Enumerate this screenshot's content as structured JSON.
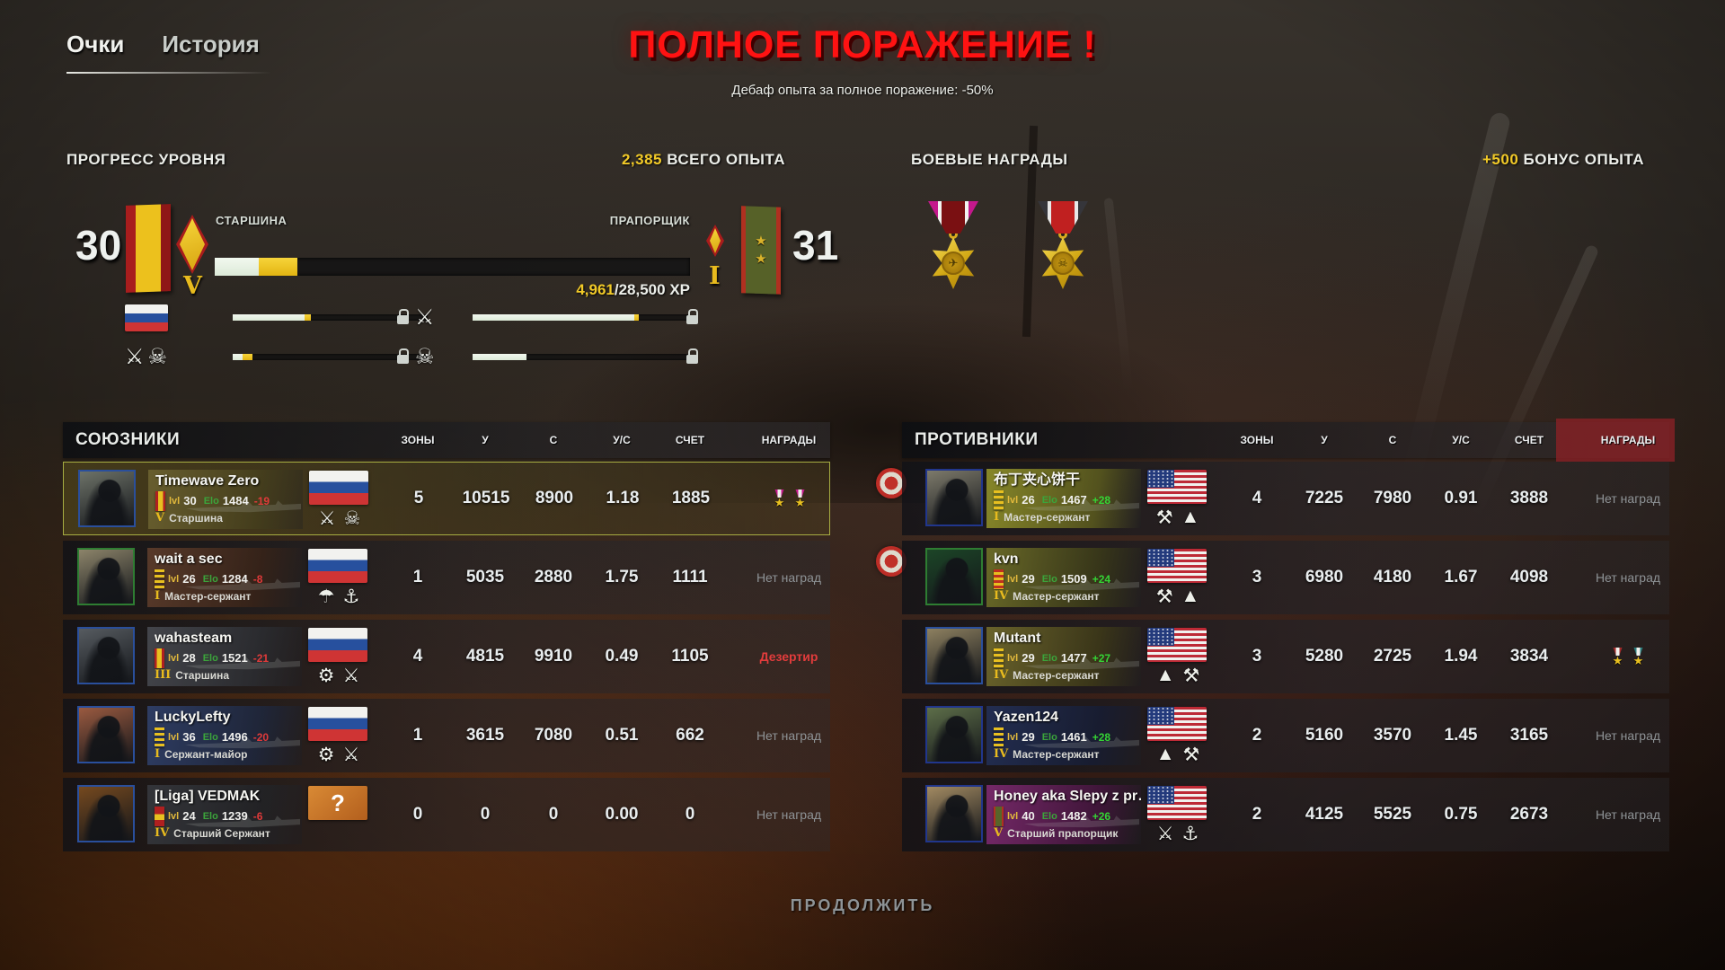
{
  "tabs": [
    {
      "label": "Очки",
      "active": true
    },
    {
      "label": "История",
      "active": false
    }
  ],
  "result": {
    "title": "ПОЛНОЕ ПОРАЖЕНИЕ !",
    "subtitle": "Дебаф опыта за полное поражение: -50%"
  },
  "level_progress": {
    "section_title": "ПРОГРЕСС УРОВНЯ",
    "total_xp_value": "2,385",
    "total_xp_label": "ВСЕГО ОПЫТА",
    "current": {
      "level": "30",
      "rank": "СТАРШИНА",
      "numeral": "V"
    },
    "next": {
      "level": "31",
      "rank": "ПРАПОРЩИК",
      "numeral": "I",
      "stars": "★"
    },
    "xp": {
      "current": "4,961",
      "total": "/28,500 XP"
    },
    "main_bar": {
      "prev_pct": 9.3,
      "gain_pct": 8.1
    },
    "sub_bars": [
      {
        "icons": [
          {
            "name": "russia-flag",
            "type": "flag"
          }
        ],
        "prev_pct": 37,
        "gain_pct": 3
      },
      {
        "icons": [
          {
            "name": "crossed-rifles-emblem",
            "type": "glyph",
            "glyph": "⚔"
          },
          {
            "name": "skull-emblem",
            "type": "glyph",
            "glyph": "☠"
          }
        ],
        "prev_pct": 5,
        "gain_pct": 5
      },
      {
        "icons": [
          {
            "name": "crossed-rifles-emblem",
            "type": "glyph",
            "glyph": "⚔"
          }
        ],
        "prev_pct": 75,
        "gain_pct": 2
      },
      {
        "icons": [
          {
            "name": "skull-emblem",
            "type": "glyph",
            "glyph": "☠"
          }
        ],
        "prev_pct": 25,
        "gain_pct": 0
      }
    ]
  },
  "battle_awards": {
    "section_title": "БОЕВЫЕ НАГРАДЫ",
    "bonus_value": "+500",
    "bonus_label": "БОНУС ОПЫТА",
    "medals": [
      {
        "name": "bird-star-medal",
        "glyph": "✈",
        "ribbon": {
          "edge": "#c4188c",
          "stripe": "#f2f2f0",
          "center": "#7a1012"
        }
      },
      {
        "name": "skull-star-medal",
        "glyph": "☠",
        "ribbon": {
          "edge": "#35353a",
          "stripe": "#e8e8e8",
          "center": "#c02020"
        }
      }
    ]
  },
  "columns": {
    "zones": "ЗОНЫ",
    "kills": "У",
    "deaths": "С",
    "kd": "У/С",
    "score": "СЧЕТ",
    "awards": "НАГРАДЫ"
  },
  "allies": {
    "title": "СОЮЗНИКИ",
    "players": [
      {
        "name": "Timewave Zero",
        "lvl": "30",
        "elo": "1484",
        "delta": "-19",
        "numeral": "V",
        "rank": "Старшина",
        "flag": "ru",
        "insignia": "board-ru",
        "highlight": true,
        "emblems": [
          {
            "name": "crossed-rifles-emblem",
            "glyph": "⚔"
          },
          {
            "name": "skull-balaclava-emblem",
            "glyph": "☠"
          }
        ],
        "zones": "5",
        "kills": "10515",
        "deaths": "8900",
        "kd": "1.18",
        "score": "1885",
        "awards": {
          "type": "medals",
          "ribbons": [
            "#c4188c",
            "#c4188c"
          ]
        },
        "style": {
          "avatar": "#6d7268",
          "border": "#2a4f9c",
          "plate1": "#6b6130",
          "plate2": "#453f1d"
        }
      },
      {
        "name": "wait a sec",
        "lvl": "26",
        "elo": "1284",
        "delta": "-8",
        "numeral": "I",
        "rank": "Мастер-сержант",
        "flag": "ru",
        "insignia": "chevrons",
        "highlight": false,
        "emblems": [
          {
            "name": "parachute-emblem",
            "glyph": "☂"
          },
          {
            "name": "naval-wreath-emblem",
            "glyph": "⚓"
          }
        ],
        "zones": "1",
        "kills": "5035",
        "deaths": "2880",
        "kd": "1.75",
        "score": "1111",
        "awards": {
          "type": "none",
          "label": "Нет наград"
        },
        "style": {
          "avatar": "#8c846a",
          "border": "#2e7d32",
          "plate1": "#5c3c2b",
          "plate2": "#3a2418"
        }
      },
      {
        "name": "wahasteam",
        "lvl": "28",
        "elo": "1521",
        "delta": "-21",
        "numeral": "III",
        "rank": "Старшина",
        "flag": "ru",
        "insignia": "board-ru",
        "highlight": false,
        "emblems": [
          {
            "name": "armor-wreath-emblem",
            "glyph": "⚙"
          },
          {
            "name": "crossed-rifles-emblem",
            "glyph": "⚔"
          }
        ],
        "zones": "4",
        "kills": "4815",
        "deaths": "9910",
        "kd": "0.49",
        "score": "1105",
        "awards": {
          "type": "deserter",
          "label": "Дезертир"
        },
        "style": {
          "avatar": "#565b60",
          "border": "#2a4f9c",
          "plate1": "#46484e",
          "plate2": "#2c2e33"
        }
      },
      {
        "name": "LuckyLefty",
        "lvl": "36",
        "elo": "1496",
        "delta": "-20",
        "numeral": "I",
        "rank": "Сержант-майор",
        "flag": "ru",
        "insignia": "chevrons",
        "highlight": false,
        "emblems": [
          {
            "name": "armor-wreath-emblem",
            "glyph": "⚙"
          },
          {
            "name": "crossed-rifles-emblem",
            "glyph": "⚔"
          }
        ],
        "zones": "1",
        "kills": "3615",
        "deaths": "7080",
        "kd": "0.51",
        "score": "662",
        "awards": {
          "type": "none",
          "label": "Нет наград"
        },
        "style": {
          "avatar": "#9a5a40",
          "border": "#2a4f9c",
          "plate1": "#2f3f68",
          "plate2": "#1e2840"
        }
      },
      {
        "name": "[Liga] VEDMAK",
        "lvl": "24",
        "elo": "1239",
        "delta": "-6",
        "numeral": "IV",
        "rank": "Старший Сержант",
        "flag": "unknown",
        "insignia": "squares",
        "highlight": false,
        "emblems": [],
        "zones": "0",
        "kills": "0",
        "deaths": "0",
        "kd": "0.00",
        "score": "0",
        "awards": {
          "type": "none",
          "label": "Нет наград"
        },
        "style": {
          "avatar": "#75491f",
          "border": "#2a4f9c",
          "plate1": "#35373c",
          "plate2": "#222428"
        }
      }
    ]
  },
  "enemies": {
    "title": "ПРОТИВНИКИ",
    "players": [
      {
        "name": "布丁夹心饼干",
        "lvl": "26",
        "elo": "1467",
        "delta": "+28",
        "numeral": "I",
        "rank": "Мастер-сержант",
        "flag": "us",
        "insignia": "chevrons",
        "highlight": false,
        "emblems": [
          {
            "name": "sapper-beetle-emblem",
            "glyph": "⚒"
          },
          {
            "name": "delta-lightning-emblem",
            "glyph": "▲"
          }
        ],
        "zones": "4",
        "kills": "7225",
        "deaths": "7980",
        "kd": "0.91",
        "score": "3888",
        "awards": {
          "type": "none",
          "label": "Нет наград"
        },
        "style": {
          "avatar": "#7d7a6b",
          "border": "#21368c",
          "plate1": "#8f8f2a",
          "plate2": "#5f5f1e"
        }
      },
      {
        "name": "kvn",
        "lvl": "29",
        "elo": "1509",
        "delta": "+24",
        "numeral": "IV",
        "rank": "Мастер-сержант",
        "flag": "us",
        "insignia": "chevrons-red",
        "highlight": false,
        "emblems": [
          {
            "name": "sapper-beetle-emblem",
            "glyph": "⚒"
          },
          {
            "name": "delta-lightning-emblem",
            "glyph": "▲"
          }
        ],
        "zones": "3",
        "kills": "6980",
        "deaths": "4180",
        "kd": "1.67",
        "score": "4098",
        "awards": {
          "type": "none",
          "label": "Нет наград"
        },
        "style": {
          "avatar": "#1c4527",
          "border": "#2e7d32",
          "plate1": "#6e6e28",
          "plate2": "#3c3c18"
        }
      },
      {
        "name": "Mutant",
        "lvl": "29",
        "elo": "1477",
        "delta": "+27",
        "numeral": "IV",
        "rank": "Мастер-сержант",
        "flag": "us",
        "insignia": "chevrons",
        "highlight": false,
        "emblems": [
          {
            "name": "delta-lightning-emblem",
            "glyph": "▲"
          },
          {
            "name": "sapper-beetle-emblem",
            "glyph": "⚒"
          }
        ],
        "zones": "3",
        "kills": "5280",
        "deaths": "2725",
        "kd": "1.94",
        "score": "3834",
        "awards": {
          "type": "medals",
          "ribbons": [
            "#a32a2a",
            "#2a7d7d"
          ]
        },
        "style": {
          "avatar": "#8d8060",
          "border": "#2a4f9c",
          "plate1": "#6f682c",
          "plate2": "#403c18"
        }
      },
      {
        "name": "Yazen124",
        "lvl": "29",
        "elo": "1461",
        "delta": "+28",
        "numeral": "IV",
        "rank": "Мастер-сержант",
        "flag": "us",
        "insignia": "chevrons",
        "highlight": false,
        "emblems": [
          {
            "name": "delta-lightning-emblem",
            "glyph": "▲"
          },
          {
            "name": "sapper-beetle-emblem",
            "glyph": "⚒"
          }
        ],
        "zones": "2",
        "kills": "5160",
        "deaths": "3570",
        "kd": "1.45",
        "score": "3165",
        "awards": {
          "type": "none",
          "label": "Нет наград"
        },
        "style": {
          "avatar": "#5d6e49",
          "border": "#21368c",
          "plate1": "#232f55",
          "plate2": "#161d35"
        }
      },
      {
        "name": "Honey aka Slepy z pr…",
        "lvl": "40",
        "elo": "1482",
        "delta": "+26",
        "numeral": "V",
        "rank": "Старший прапорщик",
        "flag": "us",
        "insignia": "board-green",
        "highlight": false,
        "emblems": [
          {
            "name": "crossed-swords-shield-emblem",
            "glyph": "⚔"
          },
          {
            "name": "marine-globe-anchor-emblem",
            "glyph": "⚓"
          }
        ],
        "zones": "2",
        "kills": "4125",
        "deaths": "5525",
        "kd": "0.75",
        "score": "2673",
        "awards": {
          "type": "none",
          "label": "Нет наград"
        },
        "style": {
          "avatar": "#a28a62",
          "border": "#21368c",
          "plate1": "#7c2a6e",
          "plate2": "#471540"
        }
      }
    ]
  },
  "footer": {
    "continue_label": "ПРОДОЛЖИТЬ"
  },
  "colors": {
    "accent_yellow": "#f2ca28",
    "defeat_red": "#ff1212",
    "elo_green": "#3ba43b",
    "loss_red": "#e03a3a",
    "gain_green": "#35d435"
  }
}
